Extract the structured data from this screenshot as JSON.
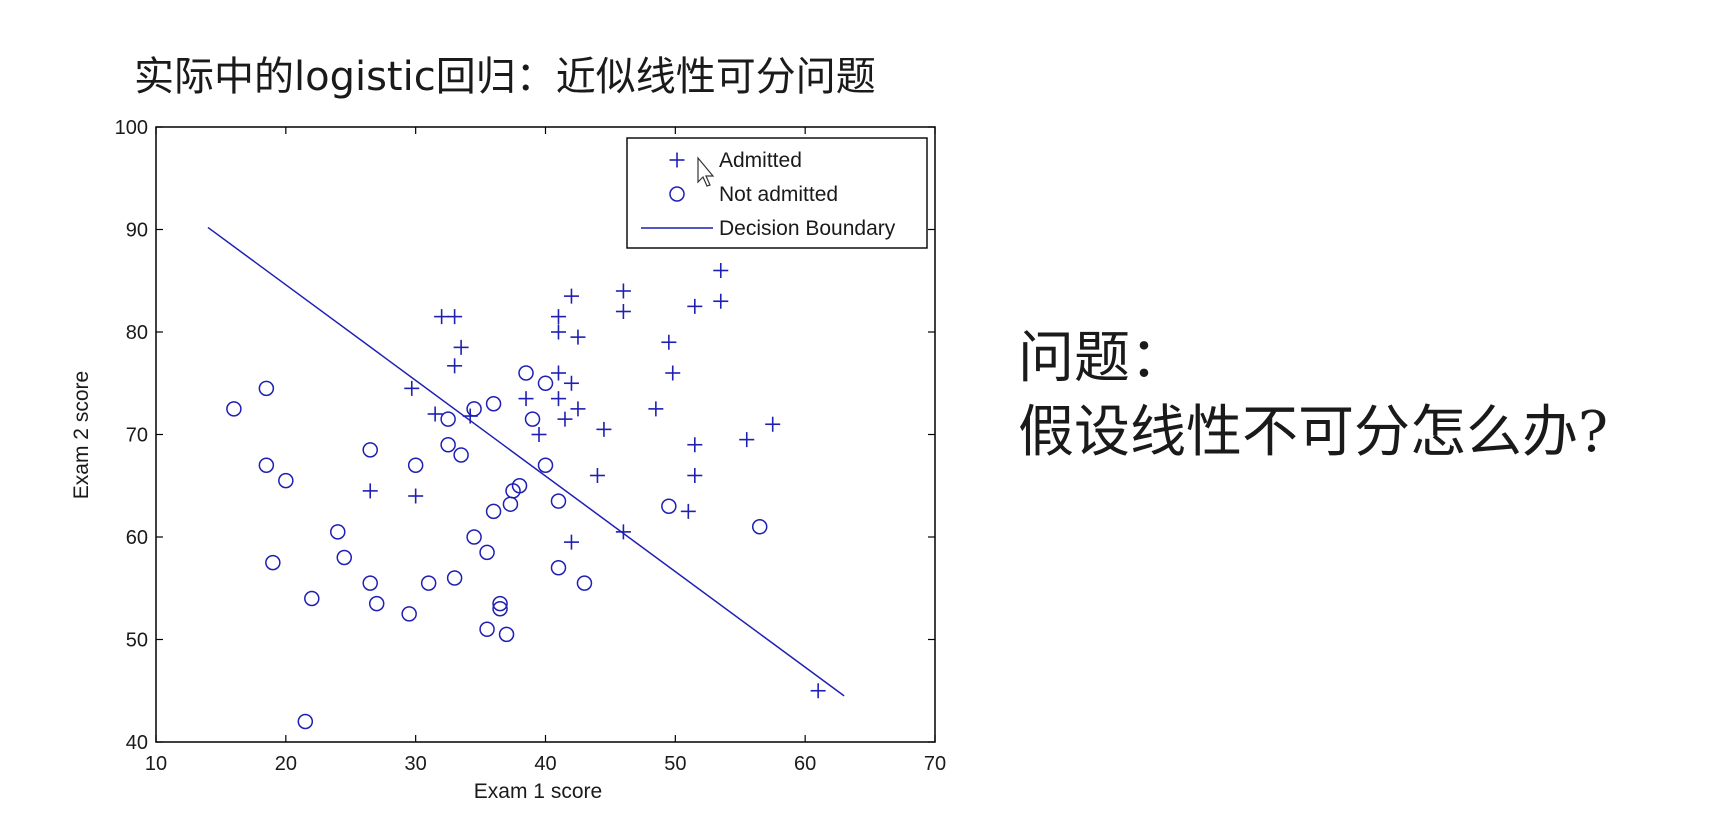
{
  "slide": {
    "title": "实际中的logistic回归：近似线性可分问题",
    "question_heading": "问题：",
    "question_text": "假设线性不可分怎么办?"
  },
  "colors": {
    "marker": "#1f1fb4",
    "axis": "#000000",
    "text": "#1a1a1a"
  },
  "chart_data": {
    "type": "scatter",
    "title": "",
    "xlabel": "Exam 1 score",
    "ylabel": "Exam 2 score",
    "xlim": [
      10,
      70
    ],
    "ylim": [
      40,
      100
    ],
    "xticks": [
      10,
      20,
      30,
      40,
      50,
      60,
      70
    ],
    "yticks": [
      40,
      50,
      60,
      70,
      80,
      90,
      100
    ],
    "grid": false,
    "legend_position": "top-right",
    "series": [
      {
        "name": "Admitted",
        "marker": "plus",
        "points": [
          [
            32.0,
            81.5
          ],
          [
            33.0,
            81.5
          ],
          [
            33.5,
            78.5
          ],
          [
            33.0,
            76.7
          ],
          [
            29.7,
            74.5
          ],
          [
            31.5,
            72.0
          ],
          [
            34.2,
            71.8
          ],
          [
            26.5,
            64.5
          ],
          [
            30.0,
            64.0
          ],
          [
            42.0,
            83.5
          ],
          [
            41.0,
            81.5
          ],
          [
            41.0,
            80.0
          ],
          [
            42.5,
            79.5
          ],
          [
            41.0,
            76.0
          ],
          [
            42.0,
            75.0
          ],
          [
            38.5,
            73.5
          ],
          [
            41.0,
            73.5
          ],
          [
            42.5,
            72.5
          ],
          [
            41.5,
            71.5
          ],
          [
            39.5,
            70.0
          ],
          [
            44.5,
            70.5
          ],
          [
            44.0,
            66.0
          ],
          [
            42.0,
            59.5
          ],
          [
            46.0,
            60.5
          ],
          [
            46.0,
            84.0
          ],
          [
            46.0,
            82.0
          ],
          [
            49.5,
            79.0
          ],
          [
            49.8,
            76.0
          ],
          [
            48.5,
            72.5
          ],
          [
            51.5,
            69.0
          ],
          [
            51.5,
            66.0
          ],
          [
            51.0,
            62.5
          ],
          [
            51.5,
            82.5
          ],
          [
            53.5,
            86.0
          ],
          [
            53.5,
            83.0
          ],
          [
            55.5,
            69.5
          ],
          [
            57.5,
            71.0
          ],
          [
            61.0,
            45.0
          ]
        ]
      },
      {
        "name": "Not admitted",
        "marker": "circle",
        "points": [
          [
            16.0,
            72.5
          ],
          [
            18.5,
            74.5
          ],
          [
            18.5,
            67.0
          ],
          [
            20.0,
            65.5
          ],
          [
            19.0,
            57.5
          ],
          [
            22.0,
            54.0
          ],
          [
            21.5,
            42.0
          ],
          [
            24.0,
            60.5
          ],
          [
            24.5,
            58.0
          ],
          [
            26.5,
            68.5
          ],
          [
            26.5,
            55.5
          ],
          [
            27.0,
            53.5
          ],
          [
            29.5,
            52.5
          ],
          [
            30.0,
            67.0
          ],
          [
            31.0,
            55.5
          ],
          [
            32.5,
            71.5
          ],
          [
            32.5,
            69.0
          ],
          [
            33.5,
            68.0
          ],
          [
            33.0,
            56.0
          ],
          [
            34.5,
            72.5
          ],
          [
            34.5,
            60.0
          ],
          [
            35.5,
            58.5
          ],
          [
            35.5,
            51.0
          ],
          [
            36.0,
            73.0
          ],
          [
            36.0,
            62.5
          ],
          [
            36.5,
            53.5
          ],
          [
            36.5,
            53.0
          ],
          [
            37.0,
            50.5
          ],
          [
            37.5,
            64.5
          ],
          [
            37.3,
            63.2
          ],
          [
            38.0,
            65.0
          ],
          [
            38.5,
            76.0
          ],
          [
            39.0,
            71.5
          ],
          [
            40.0,
            75.0
          ],
          [
            40.0,
            67.0
          ],
          [
            41.0,
            63.5
          ],
          [
            41.0,
            57.0
          ],
          [
            43.0,
            55.5
          ],
          [
            49.5,
            63.0
          ],
          [
            56.5,
            61.0
          ]
        ]
      },
      {
        "name": "Decision Boundary",
        "marker": "line",
        "points": [
          [
            14.0,
            90.2
          ],
          [
            63.0,
            44.5
          ]
        ]
      }
    ]
  }
}
